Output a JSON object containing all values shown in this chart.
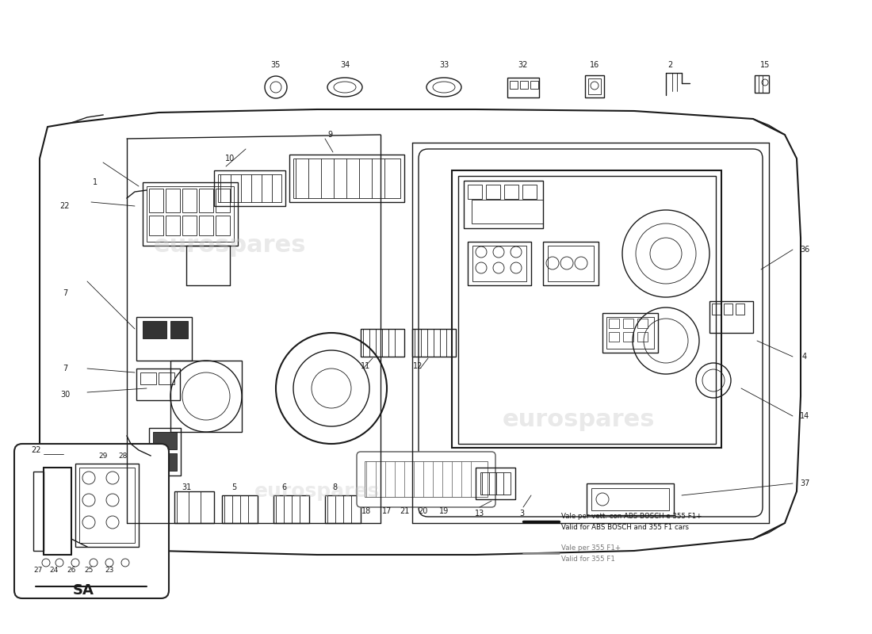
{
  "bg_color": "#ffffff",
  "diagram_color": "#1a1a1a",
  "wm_color": "#cccccc",
  "legend": {
    "line1_it": "Vale per vett. con ABS BOSCH e 355 F1+",
    "line1_en": "Valid for ABS BOSCH and 355 F1 cars",
    "line2_it": "Vale per 355 F1+",
    "line2_en": "Valid for 355 F1",
    "lc1": "#111111",
    "lc2": "#888888"
  }
}
